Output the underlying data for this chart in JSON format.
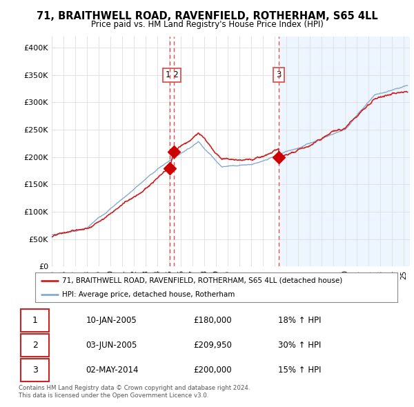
{
  "title": "71, BRAITHWELL ROAD, RAVENFIELD, ROTHERHAM, S65 4LL",
  "subtitle": "Price paid vs. HM Land Registry's House Price Index (HPI)",
  "ylabel_ticks": [
    "£0",
    "£50K",
    "£100K",
    "£150K",
    "£200K",
    "£250K",
    "£300K",
    "£350K",
    "£400K"
  ],
  "ytick_values": [
    0,
    50000,
    100000,
    150000,
    200000,
    250000,
    300000,
    350000,
    400000
  ],
  "ylim": [
    0,
    420000
  ],
  "xlim_start": 1995.0,
  "xlim_end": 2025.5,
  "sale_dates_num": [
    2005.03,
    2005.42,
    2014.33
  ],
  "sale_prices": [
    180000,
    209950,
    200000
  ],
  "sale_labels": [
    "1",
    "2",
    "3"
  ],
  "vline_color": "#e05050",
  "vline_style": "--",
  "sale_marker_color": "#cc0000",
  "sale_marker_size": 9,
  "legend_red_label": "71, BRAITHWELL ROAD, RAVENFIELD, ROTHERHAM, S65 4LL (detached house)",
  "legend_blue_label": "HPI: Average price, detached house, Rotherham",
  "table_rows": [
    [
      "1",
      "10-JAN-2005",
      "£180,000",
      "18% ↑ HPI"
    ],
    [
      "2",
      "03-JUN-2005",
      "£209,950",
      "30% ↑ HPI"
    ],
    [
      "3",
      "02-MAY-2014",
      "£200,000",
      "15% ↑ HPI"
    ]
  ],
  "footnote1": "Contains HM Land Registry data © Crown copyright and database right 2024.",
  "footnote2": "This data is licensed under the Open Government Licence v3.0.",
  "red_line_color": "#cc2222",
  "blue_line_color": "#88aacc",
  "shade_color": "#ddeeff",
  "background_color": "#ffffff",
  "grid_color": "#dddddd",
  "shade_start": 2014.33,
  "shade_end": 2025.5
}
